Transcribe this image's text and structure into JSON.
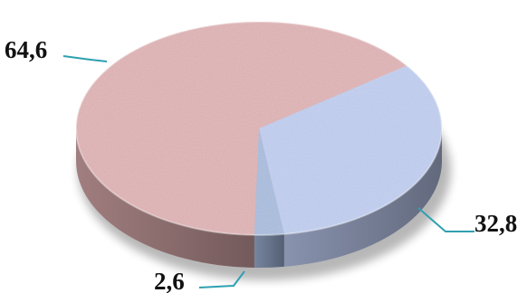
{
  "chart_data": {
    "type": "pie",
    "style": "3d-disc",
    "title": "",
    "slices": [
      {
        "label": "64,6",
        "value": 64.6,
        "color": "#d9a9aa"
      },
      {
        "label": "32,8",
        "value": 32.8,
        "color": "#b8c6ea"
      },
      {
        "label": "2,6",
        "value": 2.6,
        "color": "#9fb4d8"
      }
    ],
    "leader_color": "#2fa0b0",
    "legend": false
  }
}
